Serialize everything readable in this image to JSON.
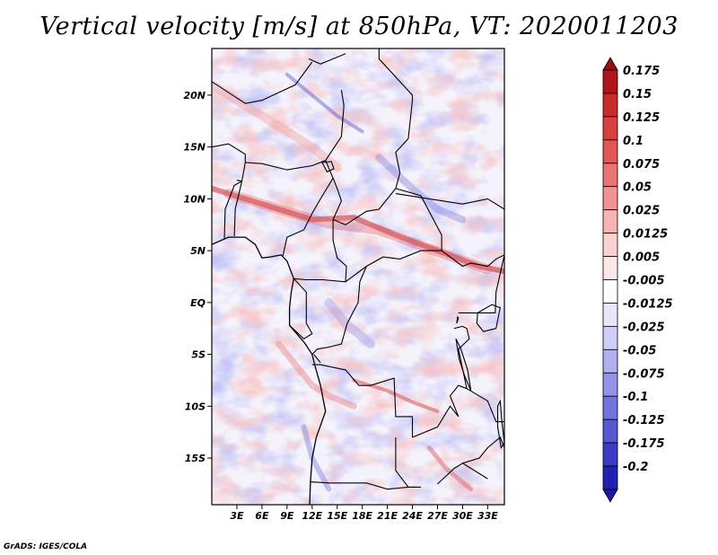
{
  "title": "Vertical velocity [m/s] at 850hPa, VT: 2020011203",
  "footer": "GrADS: IGES/COLA",
  "map": {
    "variable": "Vertical velocity",
    "level": "850hPa",
    "valid_time": "2020011203",
    "lon_range": [
      0,
      35
    ],
    "lat_range": [
      -19.5,
      24.5
    ],
    "lat_ticks": [
      {
        "value": 20,
        "label": "20N"
      },
      {
        "value": 15,
        "label": "15N"
      },
      {
        "value": 10,
        "label": "10N"
      },
      {
        "value": 5,
        "label": "5N"
      },
      {
        "value": 0,
        "label": "EQ"
      },
      {
        "value": -5,
        "label": "5S"
      },
      {
        "value": -10,
        "label": "10S"
      },
      {
        "value": -15,
        "label": "15S"
      }
    ],
    "lon_ticks": [
      {
        "value": 3,
        "label": "3E"
      },
      {
        "value": 6,
        "label": "6E"
      },
      {
        "value": 9,
        "label": "9E"
      },
      {
        "value": 12,
        "label": "12E"
      },
      {
        "value": 15,
        "label": "15E"
      },
      {
        "value": 18,
        "label": "18E"
      },
      {
        "value": 21,
        "label": "21E"
      },
      {
        "value": 24,
        "label": "24E"
      },
      {
        "value": 27,
        "label": "27E"
      },
      {
        "value": 30,
        "label": "30E"
      },
      {
        "value": 33,
        "label": "33E"
      }
    ]
  },
  "colorbar": {
    "levels": [
      {
        "label": "0.175",
        "color": "#b1131b"
      },
      {
        "label": "0.15",
        "color": "#c92a2a"
      },
      {
        "label": "0.125",
        "color": "#db4040"
      },
      {
        "label": "0.1",
        "color": "#e25757"
      },
      {
        "label": "0.075",
        "color": "#ea7373"
      },
      {
        "label": "0.05",
        "color": "#f19393"
      },
      {
        "label": "0.025",
        "color": "#f6b3b3"
      },
      {
        "label": "0.0125",
        "color": "#fad0d0"
      },
      {
        "label": "0.005",
        "color": "#fde8e8"
      },
      {
        "label": "-0.005",
        "color": "#ffffff"
      },
      {
        "label": "-0.0125",
        "color": "#e7e7fb"
      },
      {
        "label": "-0.025",
        "color": "#cdcdf6"
      },
      {
        "label": "-0.05",
        "color": "#b1b1f0"
      },
      {
        "label": "-0.075",
        "color": "#9393e8"
      },
      {
        "label": "-0.1",
        "color": "#7373de"
      },
      {
        "label": "-0.125",
        "color": "#5757d2"
      },
      {
        "label": "-0.175",
        "color": "#3a3ac4"
      },
      {
        "label": "-0.2",
        "color": "#2121b3"
      }
    ],
    "top_triangle_color": "#9b0d12",
    "bottom_triangle_color": "#1a1aa6"
  },
  "colors": {
    "frame": "#000000",
    "borders": "#000000"
  }
}
